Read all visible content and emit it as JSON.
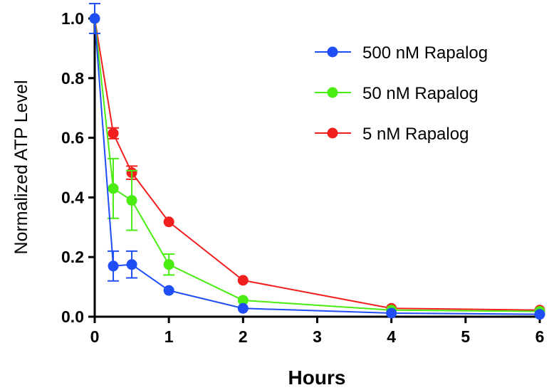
{
  "chart_data": {
    "type": "line",
    "title": "",
    "xlabel": "Hours",
    "ylabel": "Normalized ATP Level",
    "xlim": [
      0,
      6
    ],
    "ylim": [
      0,
      1.0
    ],
    "x_ticks": [
      "0",
      "1",
      "2",
      "3",
      "4",
      "5",
      "6"
    ],
    "y_ticks": [
      "0.0",
      "0.2",
      "0.4",
      "0.6",
      "0.8",
      "1.0"
    ],
    "grid": false,
    "legend_position": "top-right",
    "series": [
      {
        "name": "500 nM Rapalog",
        "color": "#1f4ef5",
        "x": [
          0,
          0.25,
          0.5,
          1,
          2,
          4,
          6
        ],
        "y": [
          1.0,
          0.17,
          0.175,
          0.088,
          0.028,
          0.012,
          0.008
        ],
        "err": [
          0.05,
          0.05,
          0.045,
          0.0,
          0.0,
          0.0,
          0.0
        ]
      },
      {
        "name": "50 nM Rapalog",
        "color": "#4aec12",
        "x": [
          0,
          0.25,
          0.5,
          1,
          2,
          4,
          6
        ],
        "y": [
          1.0,
          0.43,
          0.39,
          0.175,
          0.055,
          0.022,
          0.018
        ],
        "err": [
          0.0,
          0.1,
          0.1,
          0.035,
          0.0,
          0.0,
          0.0
        ]
      },
      {
        "name": "5 nM Rapalog",
        "color": "#f21f1f",
        "x": [
          0,
          0.25,
          0.5,
          1,
          2,
          4,
          6
        ],
        "y": [
          1.0,
          0.615,
          0.483,
          0.318,
          0.122,
          0.028,
          0.022
        ],
        "err": [
          0.0,
          0.018,
          0.022,
          0.0,
          0.0,
          0.0,
          0.0
        ]
      }
    ]
  }
}
